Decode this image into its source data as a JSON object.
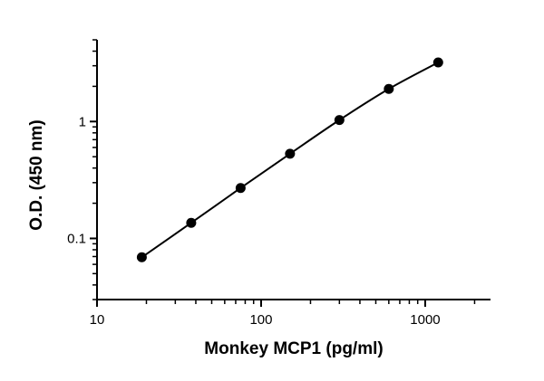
{
  "chart_data": {
    "type": "scatter",
    "xlabel": "Monkey MCP1 (pg/ml)",
    "ylabel": "O.D. (450 nm)",
    "x_scale": "log",
    "y_scale": "log",
    "xlim": [
      10,
      2500
    ],
    "ylim": [
      0.03,
      5
    ],
    "x_ticks": [
      10,
      100,
      1000
    ],
    "x_tick_labels": [
      "10",
      "100",
      "1000"
    ],
    "y_ticks": [
      0.1,
      1
    ],
    "y_tick_labels": [
      "0.1",
      "1"
    ],
    "grid": false,
    "legend": "none",
    "fit_line": true,
    "series": [
      {
        "x": [
          18.75,
          37.5,
          75,
          150,
          300,
          600,
          1200
        ],
        "y": [
          0.069,
          0.136,
          0.27,
          0.53,
          1.03,
          1.9,
          3.2
        ]
      }
    ]
  }
}
